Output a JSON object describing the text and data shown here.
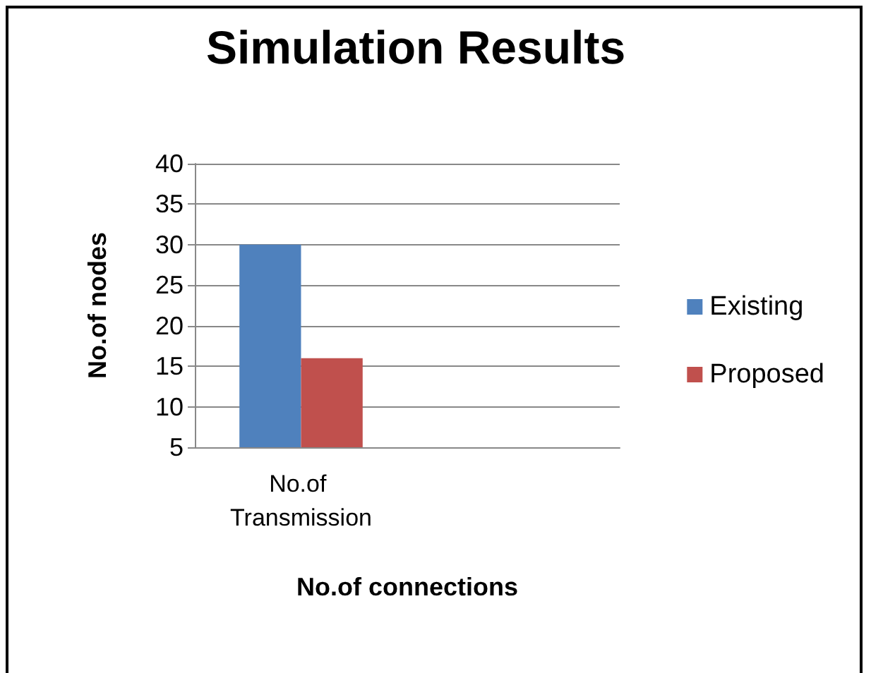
{
  "chart_data": {
    "type": "bar",
    "title": "Simulation Results",
    "xlabel": "No.of connections",
    "ylabel": "No.of nodes",
    "categories": [
      "No.of Transmission",
      null
    ],
    "series": [
      {
        "name": "Existing",
        "color": "#4f81bd",
        "values": [
          30,
          null
        ]
      },
      {
        "name": "Proposed",
        "color": "#c0504d",
        "values": [
          16,
          null
        ]
      }
    ],
    "ylim": [
      5,
      40
    ],
    "yticks": [
      5,
      10,
      15,
      20,
      25,
      30,
      35,
      40
    ],
    "grid": "y",
    "legend": "right"
  }
}
